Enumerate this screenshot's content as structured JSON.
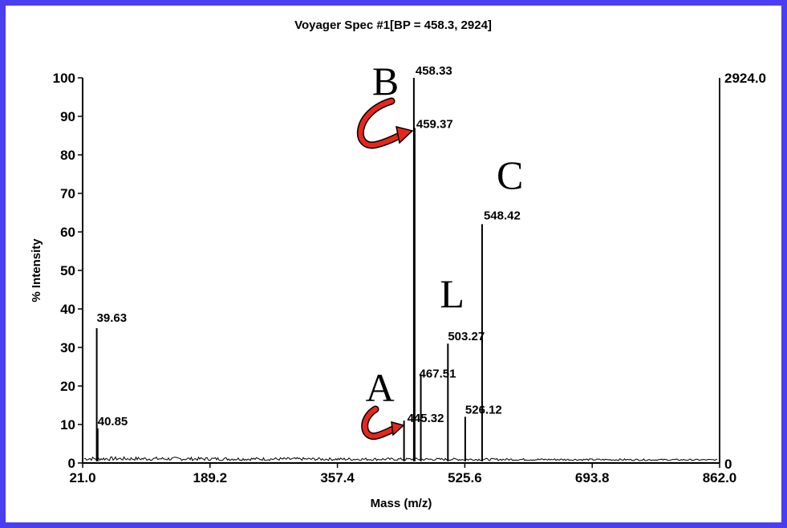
{
  "chart_data": {
    "type": "line",
    "title": "Voyager Spec #1[BP = 458.3, 2924]",
    "xlabel": "Mass (m/z)",
    "ylabel": "% Intensity",
    "xlim": [
      21.0,
      862.0
    ],
    "ylim": [
      0,
      100
    ],
    "x_ticks": [
      "21.0",
      "189.2",
      "357.4",
      "525.6",
      "693.8",
      "862.0"
    ],
    "y_ticks": [
      "0",
      "10",
      "20",
      "30",
      "40",
      "50",
      "60",
      "70",
      "80",
      "90",
      "100"
    ],
    "right_axis_top": "2924.0",
    "right_axis_bottom": "0",
    "peaks": [
      {
        "mz": 39.63,
        "intensity": 35
      },
      {
        "mz": 40.85,
        "intensity": 9
      },
      {
        "mz": 445.32,
        "intensity": 11
      },
      {
        "mz": 458.33,
        "intensity": 100
      },
      {
        "mz": 459.37,
        "intensity": 87
      },
      {
        "mz": 467.51,
        "intensity": 23
      },
      {
        "mz": 503.27,
        "intensity": 31
      },
      {
        "mz": 526.12,
        "intensity": 12
      },
      {
        "mz": 548.42,
        "intensity": 62
      }
    ],
    "peak_labels": [
      {
        "text": "39.63",
        "mz": 39.63,
        "intensity": 35
      },
      {
        "text": "40.85",
        "mz": 40.85,
        "intensity": 9
      },
      {
        "text": "445.32",
        "mz": 445.32,
        "intensity": 11
      },
      {
        "text": "458.33",
        "mz": 458.33,
        "intensity": 100
      },
      {
        "text": "459.37",
        "mz": 459.37,
        "intensity": 87
      },
      {
        "text": "467.51",
        "mz": 467.51,
        "intensity": 23
      },
      {
        "text": "503.27",
        "mz": 503.27,
        "intensity": 31
      },
      {
        "text": "526.12",
        "mz": 526.12,
        "intensity": 12
      },
      {
        "text": "548.42",
        "mz": 548.42,
        "intensity": 62
      }
    ],
    "annotations": [
      {
        "text": "A",
        "mz": 445.32
      },
      {
        "text": "B",
        "mz": 458.33
      },
      {
        "text": "L",
        "mz": 503.27
      },
      {
        "text": "C",
        "mz": 548.42
      }
    ],
    "arrow_color": "#e8261c",
    "frame_color": "#4a3ff0",
    "grid": false
  }
}
